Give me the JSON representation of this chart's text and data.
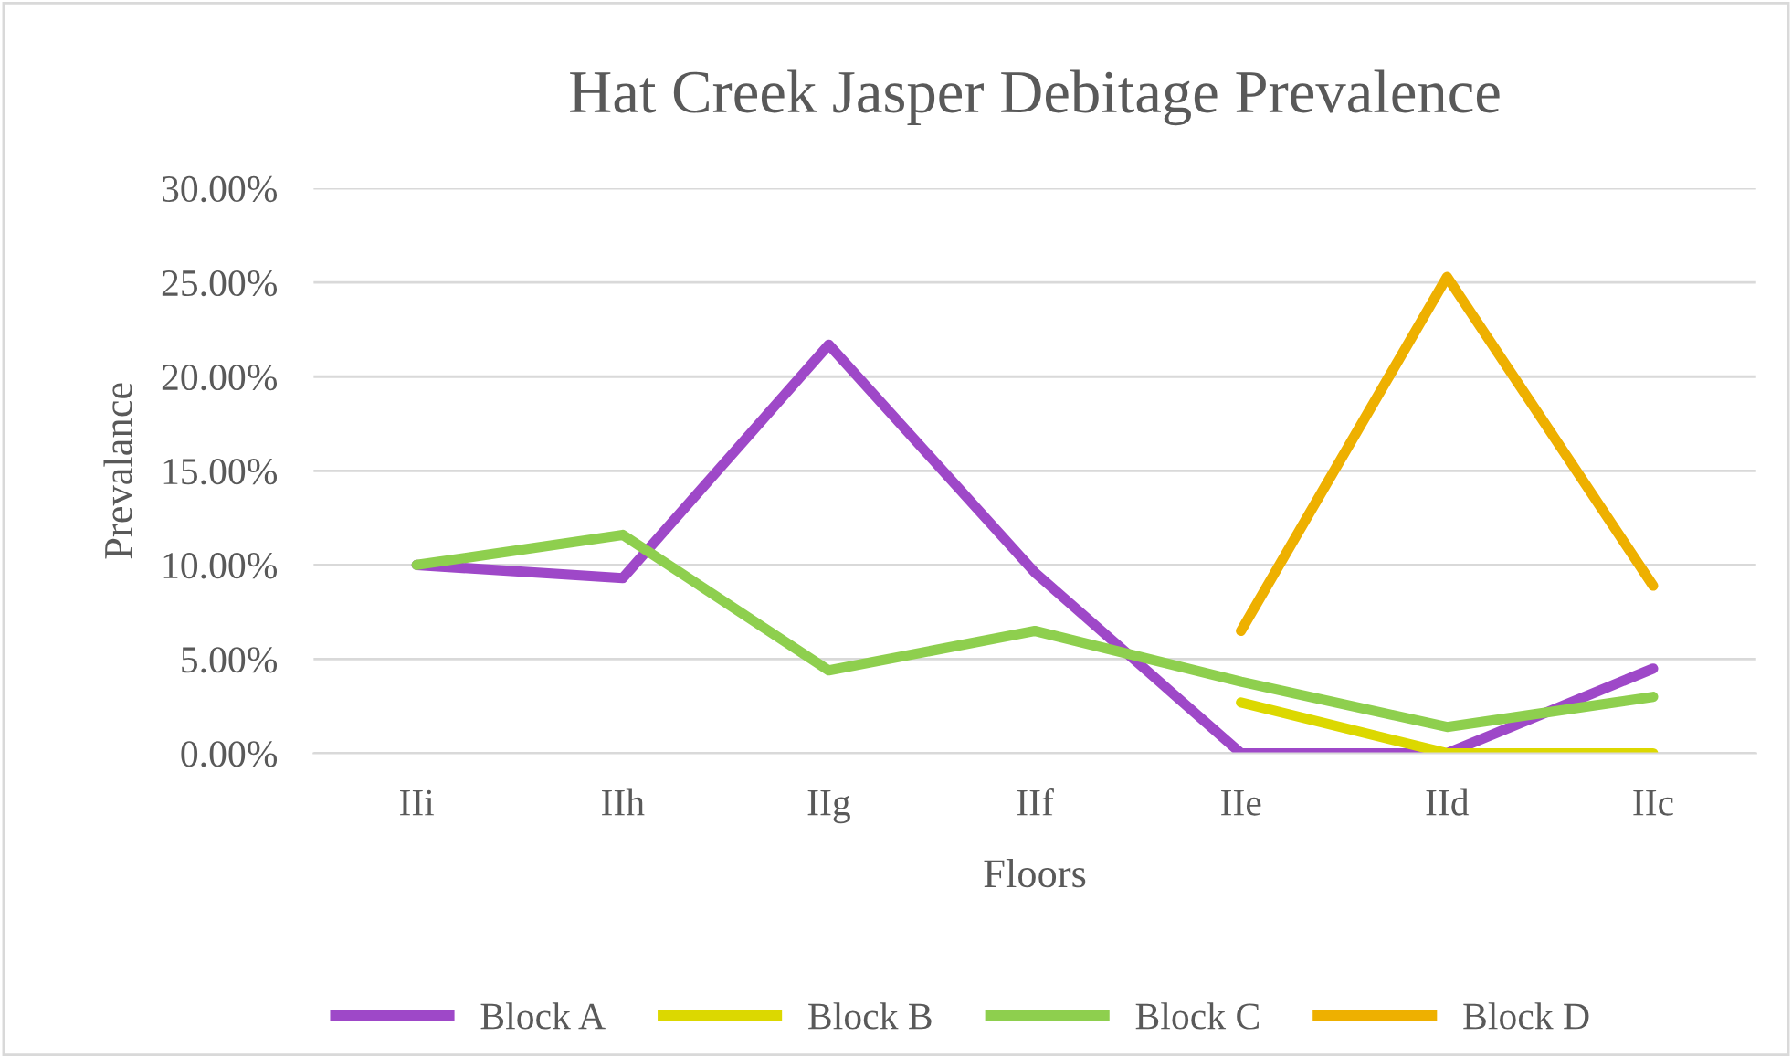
{
  "chart_data": {
    "type": "line",
    "title": "Hat Creek Jasper Debitage Prevalence",
    "xlabel": "Floors",
    "ylabel": "Prevalance",
    "categories": [
      "IIi",
      "IIh",
      "IIg",
      "IIf",
      "IIe",
      "IId",
      "IIc"
    ],
    "series": [
      {
        "name": "Block A",
        "color": "#9e48c8",
        "values": [
          10.0,
          9.3,
          21.7,
          9.6,
          0.0,
          0.0,
          4.5
        ]
      },
      {
        "name": "Block B",
        "color": "#dcd800",
        "values": [
          null,
          null,
          null,
          null,
          2.7,
          0.0,
          0.0
        ]
      },
      {
        "name": "Block C",
        "color": "#8ecf4e",
        "values": [
          10.0,
          11.6,
          4.4,
          6.5,
          3.8,
          1.4,
          3.0
        ]
      },
      {
        "name": "Block D",
        "color": "#eeb000",
        "values": [
          null,
          null,
          null,
          null,
          6.5,
          25.3,
          8.9
        ]
      }
    ],
    "ylim": [
      0,
      30
    ],
    "yticks": [
      {
        "value": 0,
        "label": "0.00%"
      },
      {
        "value": 5,
        "label": "5.00%"
      },
      {
        "value": 10,
        "label": "10.00%"
      },
      {
        "value": 15,
        "label": "15.00%"
      },
      {
        "value": 20,
        "label": "20.00%"
      },
      {
        "value": 25,
        "label": "25.00%"
      },
      {
        "value": 30,
        "label": "30.00%"
      }
    ],
    "grid": "y",
    "legend": "bottom",
    "marker": "none",
    "line_style": "solid"
  }
}
